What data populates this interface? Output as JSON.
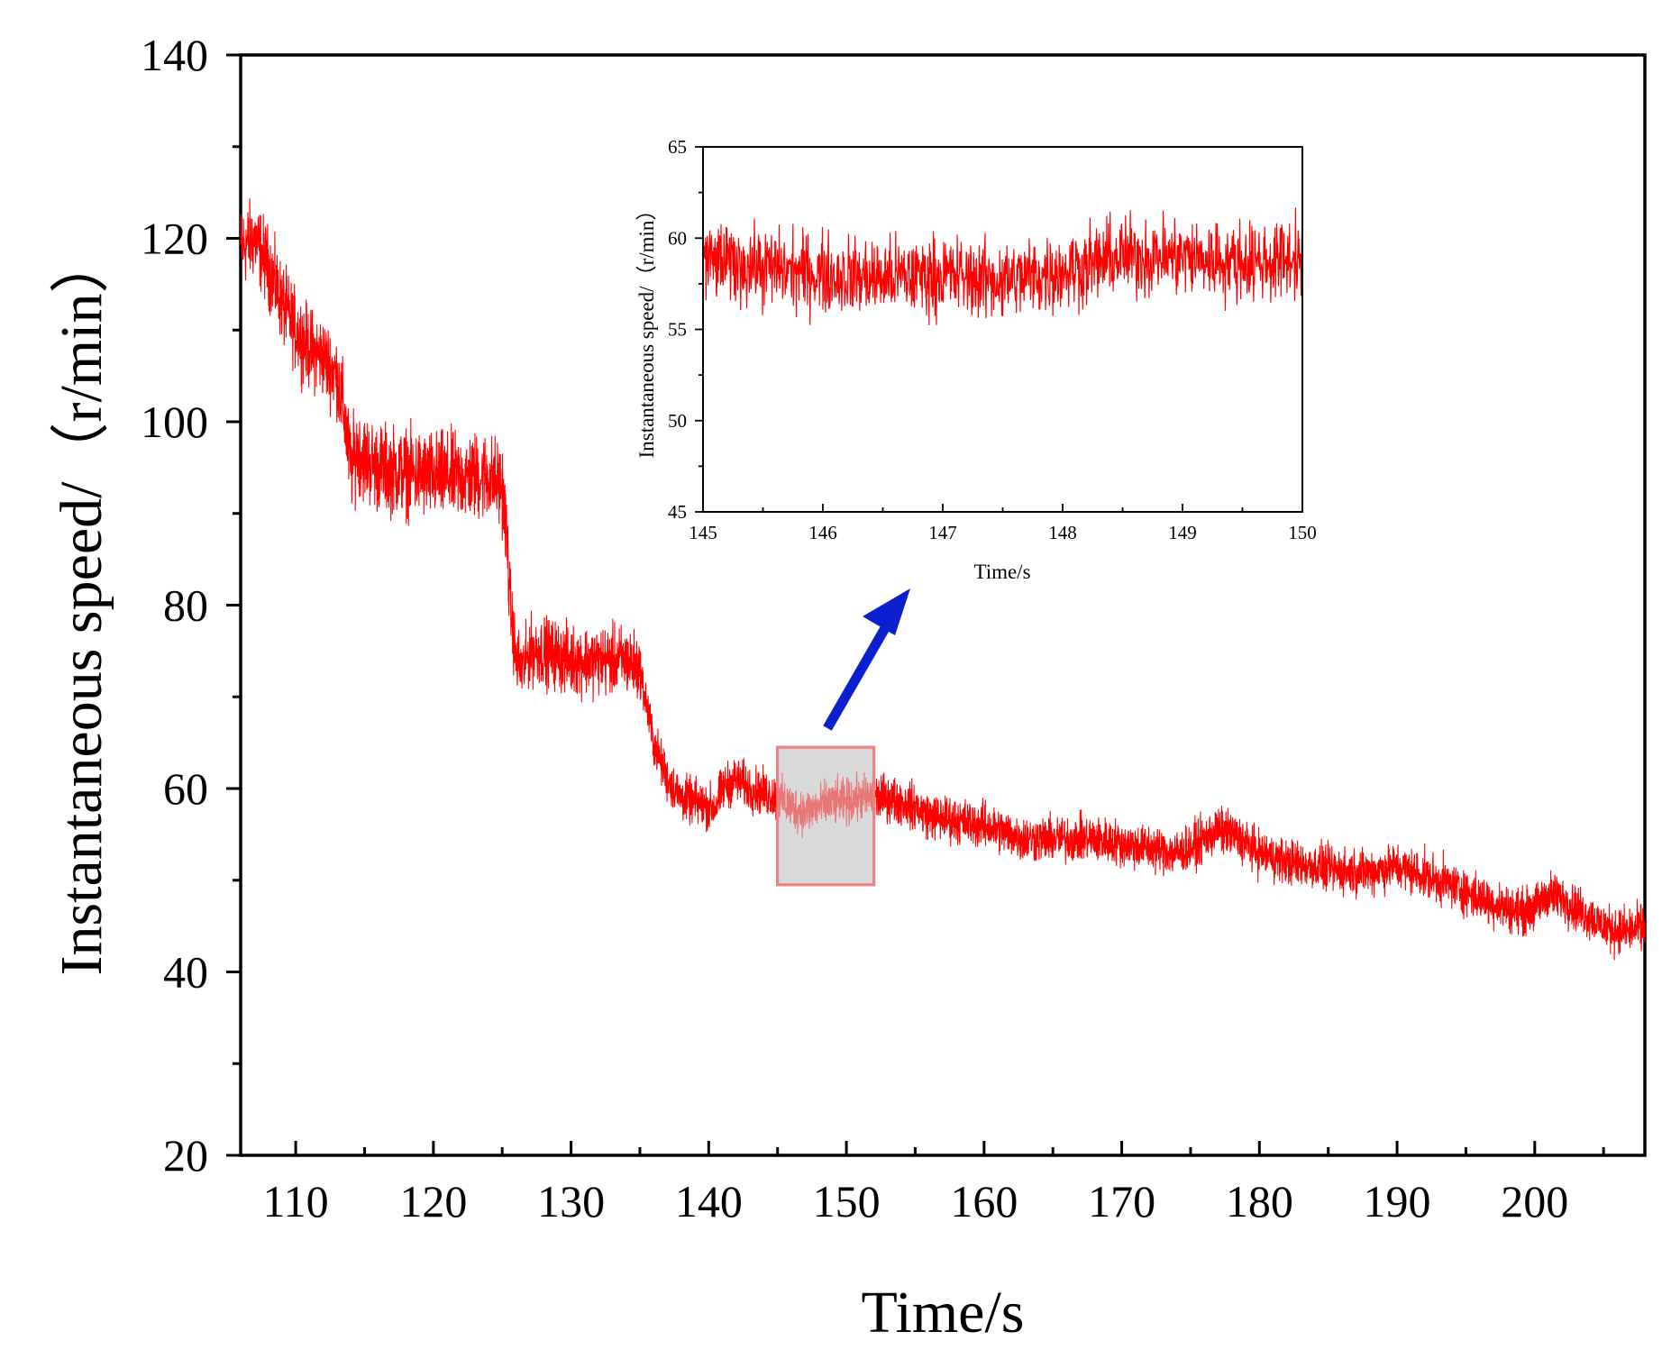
{
  "chart_data": [
    {
      "id": "main",
      "type": "line",
      "title": "",
      "xlabel": "Time/s",
      "ylabel": "Instantaneous speed/（r/min）",
      "xlim": [
        106,
        208
      ],
      "ylim": [
        20,
        140
      ],
      "xticks": [
        110,
        120,
        130,
        140,
        150,
        160,
        170,
        180,
        190,
        200
      ],
      "yticks": [
        20,
        40,
        60,
        80,
        100,
        120,
        140
      ],
      "grid": false,
      "legend": "none",
      "series_color": "#ff0000",
      "series": [
        {
          "x": [
            106,
            107,
            108,
            109,
            110,
            111,
            112,
            113,
            113.5,
            114,
            114.5,
            115,
            116,
            118,
            120,
            122,
            124,
            125,
            125.3,
            125.6,
            126,
            126.5,
            127,
            128,
            129,
            130,
            132,
            134,
            135,
            135.5,
            136,
            137,
            138,
            139,
            140,
            140.5,
            141,
            142,
            143,
            144,
            145,
            146,
            147,
            148,
            149,
            150,
            151,
            152,
            153,
            154,
            155,
            156,
            158,
            160,
            162,
            163,
            165,
            168,
            170,
            172,
            174,
            175,
            176,
            177,
            178,
            179,
            180,
            182,
            184,
            186,
            188,
            190,
            191,
            192,
            194,
            196,
            198,
            199,
            200,
            201,
            202,
            203,
            204,
            205,
            206,
            207,
            208
          ],
          "y": [
            119,
            120,
            117,
            113,
            110,
            108,
            107,
            105,
            101,
            95,
            97,
            96,
            95,
            94.5,
            94,
            94,
            94,
            93,
            88,
            80,
            74,
            73,
            75,
            75,
            74.5,
            74,
            74,
            74,
            73,
            69,
            65,
            61,
            59,
            58.5,
            58,
            58,
            60,
            61,
            60,
            59.5,
            59,
            58,
            57.5,
            58,
            58.5,
            58.5,
            59,
            59,
            59,
            58.5,
            58,
            57,
            56.5,
            56,
            55,
            54.5,
            54.5,
            54.5,
            54,
            53.5,
            53,
            53.5,
            54.5,
            55.5,
            55,
            54,
            53,
            52,
            51.5,
            51,
            51,
            51.5,
            51,
            50.5,
            49.5,
            48,
            47,
            46.5,
            47,
            48.5,
            48,
            47,
            46,
            45,
            44.5,
            44.5,
            45
          ]
        }
      ]
    },
    {
      "id": "inset",
      "type": "line",
      "title": "",
      "xlabel": "Time/s",
      "ylabel": "Instantaneous speed/（r/min）",
      "xlim": [
        145,
        150
      ],
      "ylim": [
        45,
        65
      ],
      "xticks": [
        145,
        146,
        147,
        148,
        149,
        150
      ],
      "yticks": [
        45,
        50,
        55,
        60,
        65
      ],
      "grid": false,
      "legend": "none",
      "series_color": "#ff0000",
      "series": [
        {
          "x": [
            145,
            145.25,
            145.5,
            145.75,
            146,
            146.25,
            146.5,
            146.75,
            147,
            147.25,
            147.5,
            147.75,
            148,
            148.25,
            148.5,
            148.75,
            149,
            149.25,
            149.5,
            149.75,
            150
          ],
          "y": [
            58.8,
            58.6,
            58.4,
            58.2,
            58,
            57.9,
            57.8,
            57.9,
            58,
            57.8,
            57.7,
            57.9,
            58.2,
            58.6,
            59,
            59,
            59,
            58.8,
            58.7,
            58.7,
            59
          ]
        }
      ]
    }
  ],
  "zoom_box": {
    "x_range": [
      145,
      152
    ],
    "y_range": [
      49.5,
      64.5
    ],
    "fill": "#d9d9d9",
    "stroke": "#f08080"
  },
  "arrow_color": "#0b1fcf"
}
